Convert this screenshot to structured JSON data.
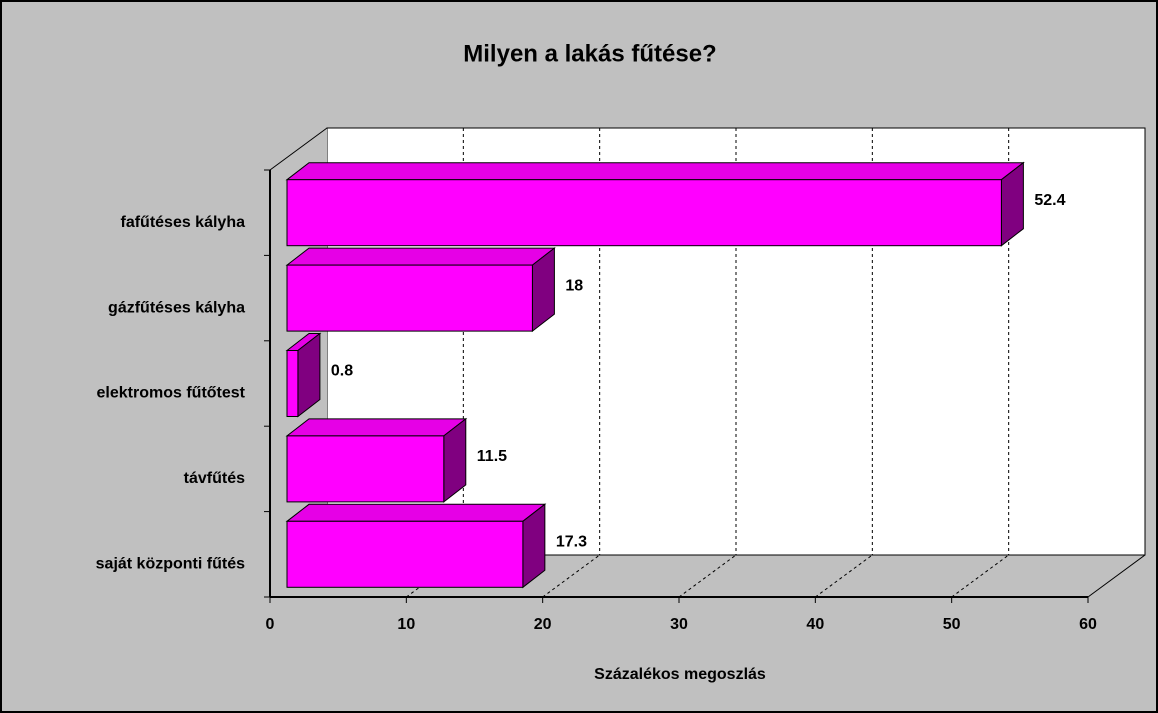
{
  "chart_data": {
    "type": "bar",
    "orientation": "horizontal",
    "title": "Milyen a lakás fűtése?",
    "categories": [
      "fafűtéses kályha",
      "gázfűtéses kályha",
      "elektromos fűtőtest",
      "távfűtés",
      "saját központi fűtés"
    ],
    "values": [
      52.4,
      18,
      0.8,
      11.5,
      17.3
    ],
    "color": "#ff00ff",
    "xlabel": "Százalékos megoszlás",
    "xlim": [
      0,
      60
    ],
    "xticks": [
      0,
      10,
      20,
      30,
      40,
      50,
      60
    ],
    "grid": true
  }
}
